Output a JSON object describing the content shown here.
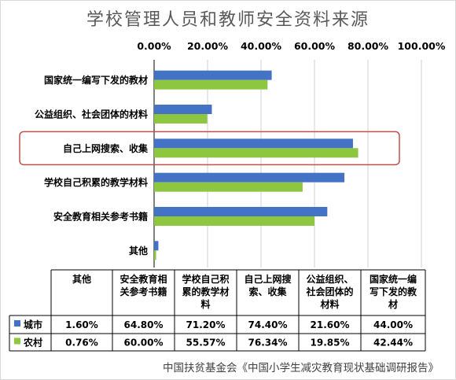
{
  "chart_data": {
    "type": "bar",
    "orientation": "horizontal",
    "title": "学校管理人员和教师安全资料来源",
    "x_ticks": [
      "0.00%",
      "20.00%",
      "40.00%",
      "60.00%",
      "80.00%",
      "100.00%"
    ],
    "xlim": [
      0,
      100
    ],
    "x_axis_position": "top",
    "grid": true,
    "categories": [
      "国家统一编写下发的教材",
      "公益组织、社会团体的材料",
      "自己上网搜索、收集",
      "学校自己积累的教学材料",
      "安全教育相关参考书籍",
      "其他"
    ],
    "series": [
      {
        "name": "城市",
        "color": "#4472C4",
        "values": [
          44.0,
          21.6,
          74.4,
          71.2,
          64.8,
          1.6
        ]
      },
      {
        "name": "农村",
        "color": "#8DC63F",
        "values": [
          42.44,
          19.85,
          76.34,
          55.57,
          60.0,
          0.76
        ]
      }
    ],
    "highlight_category": "自己上网搜索、收集",
    "highlight_color": "#C0504D",
    "table": {
      "headers": [
        "其他",
        "安全教育相关参考书籍",
        "学校自己积累的教学材料",
        "自己上网搜索、收集",
        "公益组织、社会团体的材料",
        "国家统一编写下发的教材"
      ],
      "header_lines": [
        [
          "其他"
        ],
        [
          "安全教育相",
          "关参考书籍"
        ],
        [
          "学校自己积",
          "累的教学材",
          "料"
        ],
        [
          "自己上网搜",
          "索、收集"
        ],
        [
          "公益组织、",
          "社会团体的",
          "材料"
        ],
        [
          "国家统一编",
          "写下发的教",
          "材"
        ]
      ],
      "rows": [
        {
          "series": "城市",
          "cells": [
            "1.60%",
            "64.80%",
            "71.20%",
            "74.40%",
            "21.60%",
            "44.00%"
          ]
        },
        {
          "series": "农村",
          "cells": [
            "0.76%",
            "60.00%",
            "55.57%",
            "76.34%",
            "19.85%",
            "42.44%"
          ]
        }
      ]
    }
  },
  "source": "中国扶贫基金会《中国小学生减灾教育现状基础调研报告》"
}
